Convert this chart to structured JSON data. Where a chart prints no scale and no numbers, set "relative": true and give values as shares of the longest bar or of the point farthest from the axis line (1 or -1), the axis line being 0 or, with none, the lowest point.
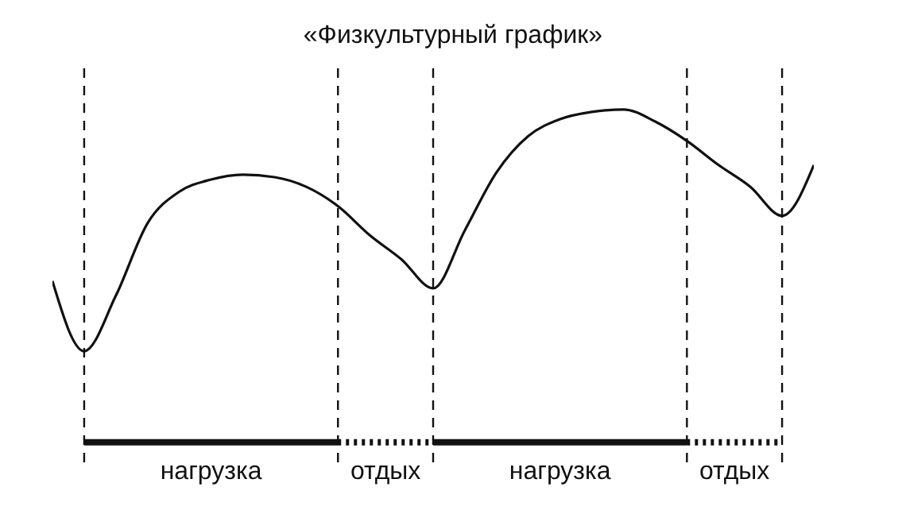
{
  "chart_data": {
    "type": "line",
    "title": "«Физкультурный график»",
    "relative": true,
    "marker": "none",
    "line_style": "solid",
    "color": "#111111",
    "grid": "x",
    "categories": [
      null,
      null,
      null,
      null,
      null,
      null,
      null,
      null,
      null,
      null,
      null,
      null,
      null,
      null,
      null,
      null,
      null,
      null,
      null,
      null,
      null,
      null,
      null,
      null,
      null
    ],
    "values": [
      0.29,
      0,
      0.23,
      0.53,
      0.66,
      0.71,
      0.73,
      0.72,
      0.68,
      0.6,
      0.48,
      0.38,
      0.26,
      0.5,
      0.74,
      0.89,
      0.96,
      0.99,
      1,
      0.95,
      0.87,
      0.77,
      0.68,
      0.56,
      0.77
    ],
    "annotations": [
      "нагрузка",
      "отдых",
      "нагрузка",
      "отдых"
    ]
  }
}
